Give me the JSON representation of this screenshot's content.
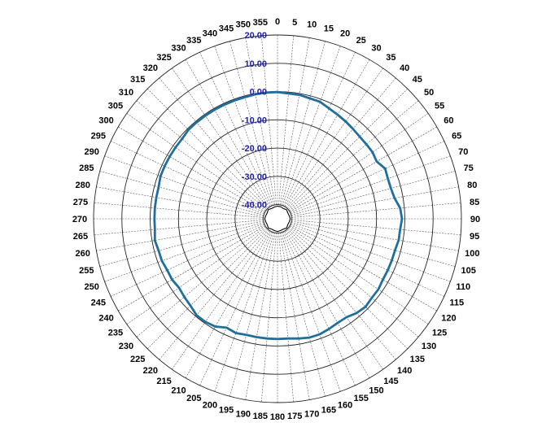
{
  "chart_data": {
    "type": "polar-line",
    "title": "",
    "angle_unit": "degrees",
    "angle_direction": "clockwise",
    "zero_angle": "top",
    "angle_ticks": [
      0,
      5,
      10,
      15,
      20,
      25,
      30,
      35,
      40,
      45,
      50,
      55,
      60,
      65,
      70,
      75,
      80,
      85,
      90,
      95,
      100,
      105,
      110,
      115,
      120,
      125,
      130,
      135,
      140,
      145,
      150,
      155,
      160,
      165,
      170,
      175,
      180,
      185,
      190,
      195,
      200,
      205,
      210,
      215,
      220,
      225,
      230,
      235,
      240,
      245,
      250,
      255,
      260,
      265,
      270,
      275,
      280,
      285,
      290,
      295,
      300,
      305,
      310,
      315,
      320,
      325,
      330,
      335,
      340,
      345,
      350,
      355
    ],
    "radial_range": [
      -45,
      20
    ],
    "radial_ticks": [
      -40,
      -30,
      -20,
      -10,
      0,
      10,
      20
    ],
    "radial_tick_labels": [
      "-40.00",
      "-30.00",
      "-20.00",
      "-10.00",
      "0.00",
      "10.00",
      "20.00"
    ],
    "grid": true,
    "series": [
      {
        "color": "#1f6e9c",
        "points": [
          [
            0,
            -0.2
          ],
          [
            10,
            -0.5
          ],
          [
            20,
            -1.0
          ],
          [
            30,
            -2.5
          ],
          [
            35,
            -3.0
          ],
          [
            40,
            -3.5
          ],
          [
            50,
            -4.0
          ],
          [
            55,
            -4.0
          ],
          [
            60,
            -4.5
          ],
          [
            65,
            -3.0
          ],
          [
            70,
            -3.5
          ],
          [
            75,
            -3.5
          ],
          [
            80,
            -3.0
          ],
          [
            85,
            -1.5
          ],
          [
            90,
            -1.0
          ],
          [
            95,
            -1.5
          ],
          [
            100,
            -1.5
          ],
          [
            105,
            -2.0
          ],
          [
            110,
            -2.0
          ],
          [
            115,
            -2.0
          ],
          [
            120,
            -2.0
          ],
          [
            125,
            -1.5
          ],
          [
            130,
            -1.5
          ],
          [
            135,
            -1.0
          ],
          [
            140,
            -1.5
          ],
          [
            145,
            -2.5
          ],
          [
            150,
            -2.5
          ],
          [
            155,
            -2.0
          ],
          [
            160,
            -1.5
          ],
          [
            165,
            -1.5
          ],
          [
            170,
            -2.0
          ],
          [
            175,
            -2.5
          ],
          [
            180,
            -2.5
          ],
          [
            185,
            -2.5
          ],
          [
            190,
            -2.5
          ],
          [
            195,
            -2.5
          ],
          [
            200,
            -2.0
          ],
          [
            205,
            -2.5
          ],
          [
            210,
            -1.0
          ],
          [
            215,
            -0.5
          ],
          [
            220,
            -0.5
          ],
          [
            225,
            -1.5
          ],
          [
            230,
            -2.0
          ],
          [
            235,
            -2.5
          ],
          [
            240,
            -2.0
          ],
          [
            245,
            -2.0
          ],
          [
            250,
            -1.5
          ],
          [
            255,
            -1.5
          ],
          [
            260,
            -1.0
          ],
          [
            265,
            -1.5
          ],
          [
            270,
            -1.5
          ],
          [
            275,
            -1.5
          ],
          [
            280,
            -1.5
          ],
          [
            285,
            -1.5
          ],
          [
            290,
            -1.0
          ],
          [
            295,
            -1.0
          ],
          [
            300,
            -1.0
          ],
          [
            305,
            -1.0
          ],
          [
            310,
            -1.0
          ],
          [
            315,
            -0.5
          ],
          [
            320,
            -0.5
          ],
          [
            325,
            -0.5
          ],
          [
            330,
            -0.5
          ],
          [
            335,
            -0.5
          ],
          [
            340,
            -0.5
          ],
          [
            345,
            -0.5
          ],
          [
            350,
            -0.3
          ],
          [
            355,
            -0.2
          ]
        ]
      },
      {
        "color": "#000000",
        "points": [
          [
            0,
            -40.5
          ],
          [
            15,
            -40.6
          ],
          [
            30,
            -40.8
          ],
          [
            45,
            -40.5
          ],
          [
            60,
            -40.8
          ],
          [
            75,
            -40.7
          ],
          [
            90,
            -40.5
          ],
          [
            105,
            -40.7
          ],
          [
            120,
            -40.8
          ],
          [
            135,
            -40.4
          ],
          [
            150,
            -40.8
          ],
          [
            165,
            -40.7
          ],
          [
            180,
            -40.5
          ],
          [
            195,
            -40.7
          ],
          [
            210,
            -40.8
          ],
          [
            225,
            -40.4
          ],
          [
            240,
            -40.8
          ],
          [
            255,
            -40.7
          ],
          [
            270,
            -40.5
          ],
          [
            285,
            -40.7
          ],
          [
            300,
            -40.8
          ],
          [
            315,
            -40.4
          ],
          [
            330,
            -40.8
          ],
          [
            345,
            -40.7
          ]
        ]
      }
    ],
    "ring_label_color": "#1f1fa8",
    "ring_color": "#222222"
  }
}
